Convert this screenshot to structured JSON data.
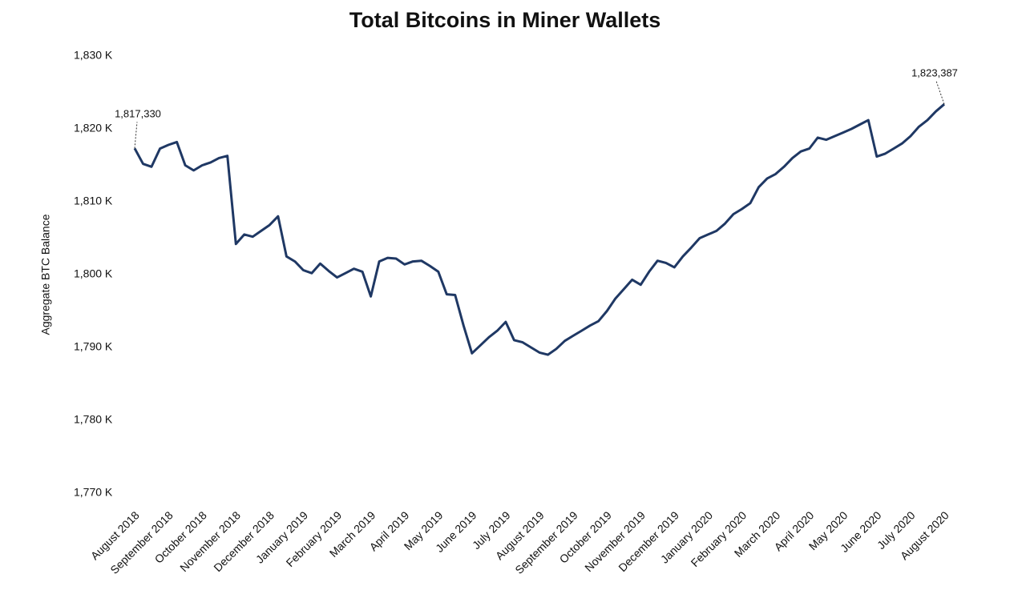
{
  "chart_data": {
    "type": "line",
    "title": "Total Bitcoins in Miner Wallets",
    "y_label": "Aggregate BTC Balance",
    "categories": [
      "August 2018",
      null,
      null,
      null,
      "September 2018",
      null,
      null,
      null,
      "October 2018",
      null,
      null,
      null,
      "November 2018",
      null,
      null,
      null,
      "December 2018",
      null,
      null,
      null,
      "January 2019",
      null,
      null,
      null,
      "February 2019",
      null,
      null,
      null,
      "March 2019",
      null,
      null,
      null,
      "April 2019",
      null,
      null,
      null,
      "May 2019",
      null,
      null,
      null,
      "June 2019",
      null,
      null,
      null,
      "July 2019",
      null,
      null,
      null,
      "August 2019",
      null,
      null,
      null,
      "September 2019",
      null,
      null,
      null,
      "October 2019",
      null,
      null,
      null,
      "November 2019",
      null,
      null,
      null,
      "December 2019",
      null,
      null,
      null,
      "January 2020",
      null,
      null,
      null,
      "February 2020",
      null,
      null,
      null,
      "March 2020",
      null,
      null,
      null,
      "April 2020",
      null,
      null,
      null,
      "May 2020",
      null,
      null,
      null,
      "June 2020",
      null,
      null,
      null,
      "July 2020",
      null,
      null,
      null,
      "August 2020"
    ],
    "series": [
      {
        "name": "Aggregate BTC Balance",
        "color": "#1f3864",
        "values": [
          1817.33,
          1815.2,
          1814.8,
          1817.3,
          1817.8,
          1818.2,
          1815.0,
          1814.3,
          1815.0,
          1815.4,
          1816.0,
          1816.3,
          1804.2,
          1805.5,
          1805.2,
          1806.0,
          1806.8,
          1808.0,
          1802.5,
          1801.8,
          1800.6,
          1800.2,
          1801.5,
          1800.5,
          1799.6,
          1800.2,
          1800.8,
          1800.4,
          1797.0,
          1801.8,
          1802.3,
          1802.2,
          1801.4,
          1801.8,
          1801.9,
          1801.2,
          1800.4,
          1797.3,
          1797.2,
          1793.0,
          1789.2,
          1790.3,
          1791.4,
          1792.3,
          1793.5,
          1791.0,
          1790.7,
          1790.0,
          1789.3,
          1789.0,
          1789.8,
          1790.9,
          1791.6,
          1792.3,
          1793.0,
          1793.6,
          1795.0,
          1796.7,
          1798.0,
          1799.3,
          1798.6,
          1800.4,
          1801.9,
          1801.6,
          1801.0,
          1802.5,
          1803.7,
          1805.0,
          1805.5,
          1806.0,
          1807.0,
          1808.3,
          1809.0,
          1809.8,
          1812.0,
          1813.2,
          1813.8,
          1814.8,
          1816.0,
          1816.9,
          1817.3,
          1818.8,
          1818.5,
          1819.0,
          1819.5,
          1820.0,
          1820.6,
          1821.2,
          1816.2,
          1816.6,
          1817.3,
          1818.0,
          1819.0,
          1820.3,
          1821.2,
          1822.4,
          1823.387
        ],
        "value_labels": [
          "1,817,330",
          null,
          null,
          null,
          null,
          null,
          null,
          null,
          null,
          null,
          null,
          null,
          null,
          null,
          null,
          null,
          null,
          null,
          null,
          null,
          null,
          null,
          null,
          null,
          null,
          null,
          null,
          null,
          null,
          null,
          null,
          null,
          null,
          null,
          null,
          null,
          null,
          null,
          null,
          null,
          null,
          null,
          null,
          null,
          null,
          null,
          null,
          null,
          null,
          null,
          null,
          null,
          null,
          null,
          null,
          null,
          null,
          null,
          null,
          null,
          null,
          null,
          null,
          null,
          null,
          null,
          null,
          null,
          null,
          null,
          null,
          null,
          null,
          null,
          null,
          null,
          null,
          null,
          null,
          null,
          null,
          null,
          null,
          null,
          null,
          null,
          null,
          null,
          null,
          null,
          null,
          null,
          null,
          null,
          null,
          null,
          "1,823,387"
        ]
      }
    ],
    "ylim": [
      1770,
      1830
    ],
    "yticks": [
      {
        "value": 1770,
        "label": "1,770 K"
      },
      {
        "value": 1780,
        "label": "1,780 K"
      },
      {
        "value": 1790,
        "label": "1,790 K"
      },
      {
        "value": 1800,
        "label": "1,800 K"
      },
      {
        "value": 1810,
        "label": "1,810 K"
      },
      {
        "value": 1820,
        "label": "1,820 K"
      },
      {
        "value": 1830,
        "label": "1,830 K"
      }
    ],
    "grid": false,
    "legend": false
  }
}
